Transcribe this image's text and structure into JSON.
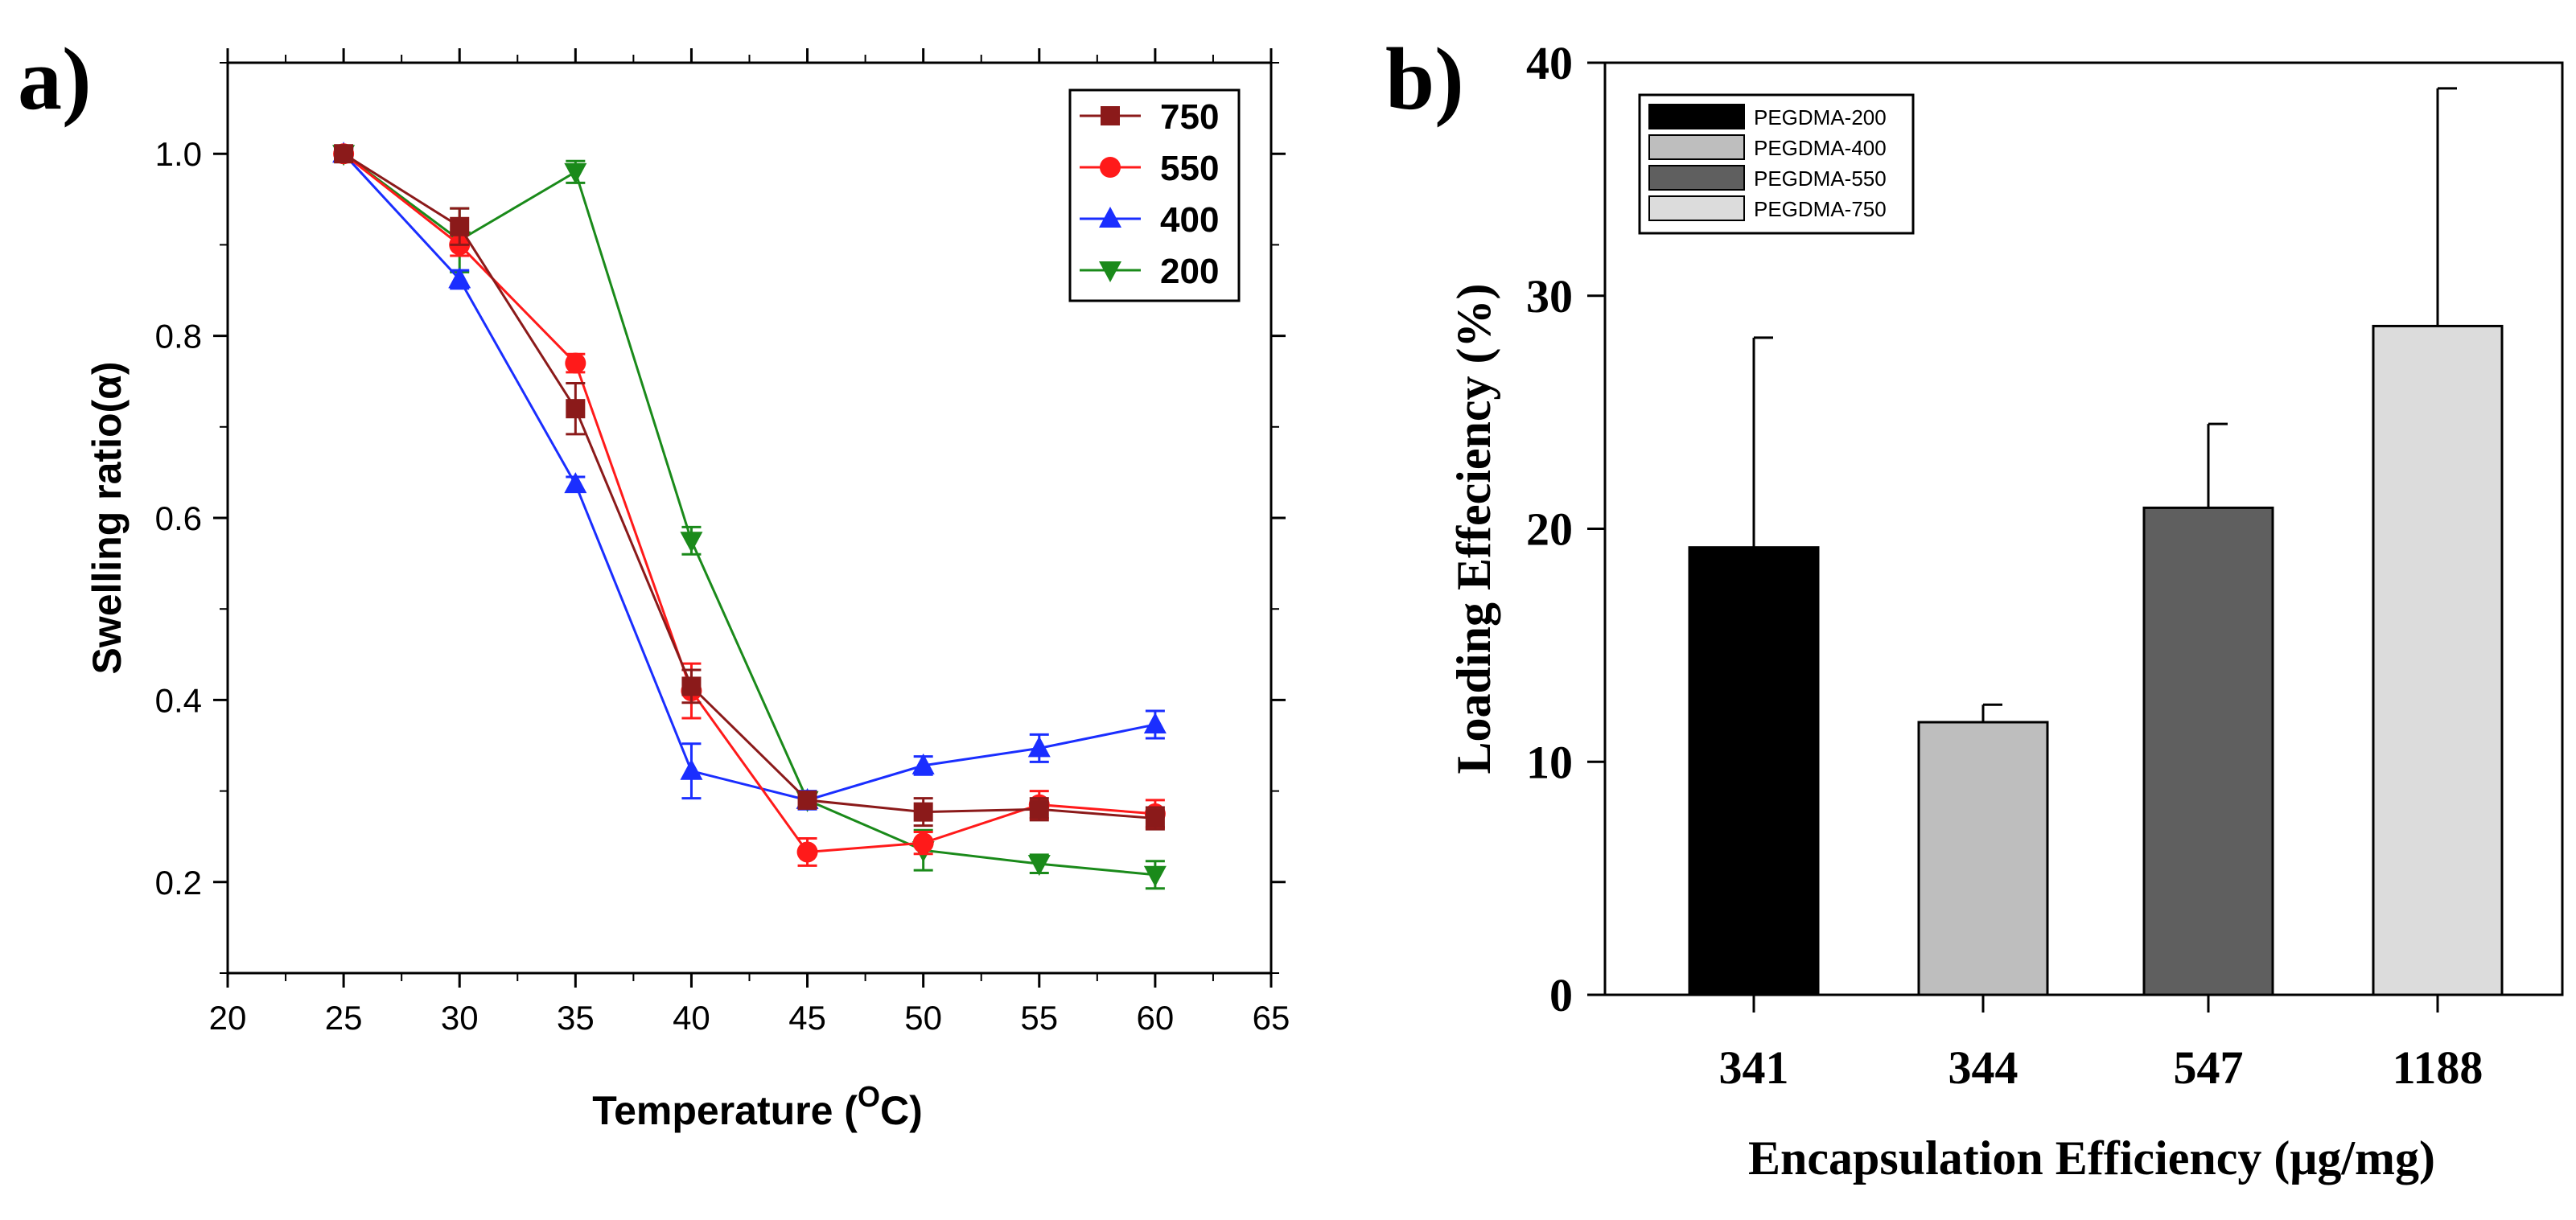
{
  "colors": {
    "750": "#8b1a1a",
    "550": "#ff1a1a",
    "400": "#1a2eff",
    "200": "#1a8a1a",
    "axis": "#000000"
  },
  "chart_data": [
    {
      "type": "line",
      "panel_label": "a)",
      "title": "",
      "xlabel_main": "Temperature (",
      "xlabel_sup": "O",
      "xlabel_tail": "C)",
      "ylabel": "Swelling ratio(α)",
      "xlim": [
        20,
        65
      ],
      "ylim": [
        0.1,
        1.1
      ],
      "xticks": [
        20,
        25,
        30,
        35,
        40,
        45,
        50,
        55,
        60,
        65
      ],
      "yticks": [
        0.2,
        0.4,
        0.6,
        0.8,
        1.0
      ],
      "ytick_labels": [
        "0.2",
        "0.4",
        "0.6",
        "0.8",
        "1.0"
      ],
      "x": [
        25,
        30,
        35,
        40,
        45,
        50,
        55,
        60
      ],
      "legend_position": "top-right",
      "series": [
        {
          "name": "750",
          "marker": "square",
          "values": [
            1.0,
            0.92,
            0.72,
            0.415,
            0.29,
            0.277,
            0.28,
            0.27
          ],
          "errors": [
            0.006,
            0.02,
            0.028,
            0.018,
            0.008,
            0.015,
            0.012,
            0.012
          ]
        },
        {
          "name": "550",
          "marker": "circle",
          "values": [
            1.0,
            0.9,
            0.77,
            0.41,
            0.233,
            0.243,
            0.285,
            0.275
          ],
          "errors": [
            0.006,
            0.012,
            0.01,
            0.03,
            0.015,
            0.012,
            0.015,
            0.015
          ]
        },
        {
          "name": "400",
          "marker": "triangle-up",
          "values": [
            1.0,
            0.862,
            0.637,
            0.322,
            0.29,
            0.328,
            0.347,
            0.373
          ],
          "errors": [
            0.006,
            0.01,
            0.008,
            0.03,
            0.01,
            0.01,
            0.015,
            0.015
          ]
        },
        {
          "name": "200",
          "marker": "triangle-down",
          "values": [
            1.0,
            0.905,
            0.98,
            0.575,
            0.29,
            0.235,
            0.22,
            0.208
          ],
          "errors": [
            0.006,
            0.035,
            0.012,
            0.015,
            0.008,
            0.022,
            0.01,
            0.015
          ]
        }
      ]
    },
    {
      "type": "bar",
      "panel_label": "b)",
      "title": "",
      "xlabel": "Encapsulation Efficiency (μg/mg)",
      "ylabel": "Loading Effeciency (%)",
      "ylim": [
        0,
        40
      ],
      "yticks": [
        0,
        10,
        20,
        30,
        40
      ],
      "categories": [
        "341",
        "344",
        "547",
        "1188"
      ],
      "values": [
        19.2,
        11.7,
        20.9,
        28.7
      ],
      "errors": [
        9.0,
        0.75,
        3.6,
        10.2
      ],
      "legend_position": "top-left",
      "legend": [
        "PEGDMA-200",
        "PEGDMA-400",
        "PEGDMA-550",
        "PEGDMA-750"
      ],
      "bar_colors": [
        "#000000",
        "#bebebe",
        "#5f5f5f",
        "#dcdcdc"
      ]
    }
  ]
}
